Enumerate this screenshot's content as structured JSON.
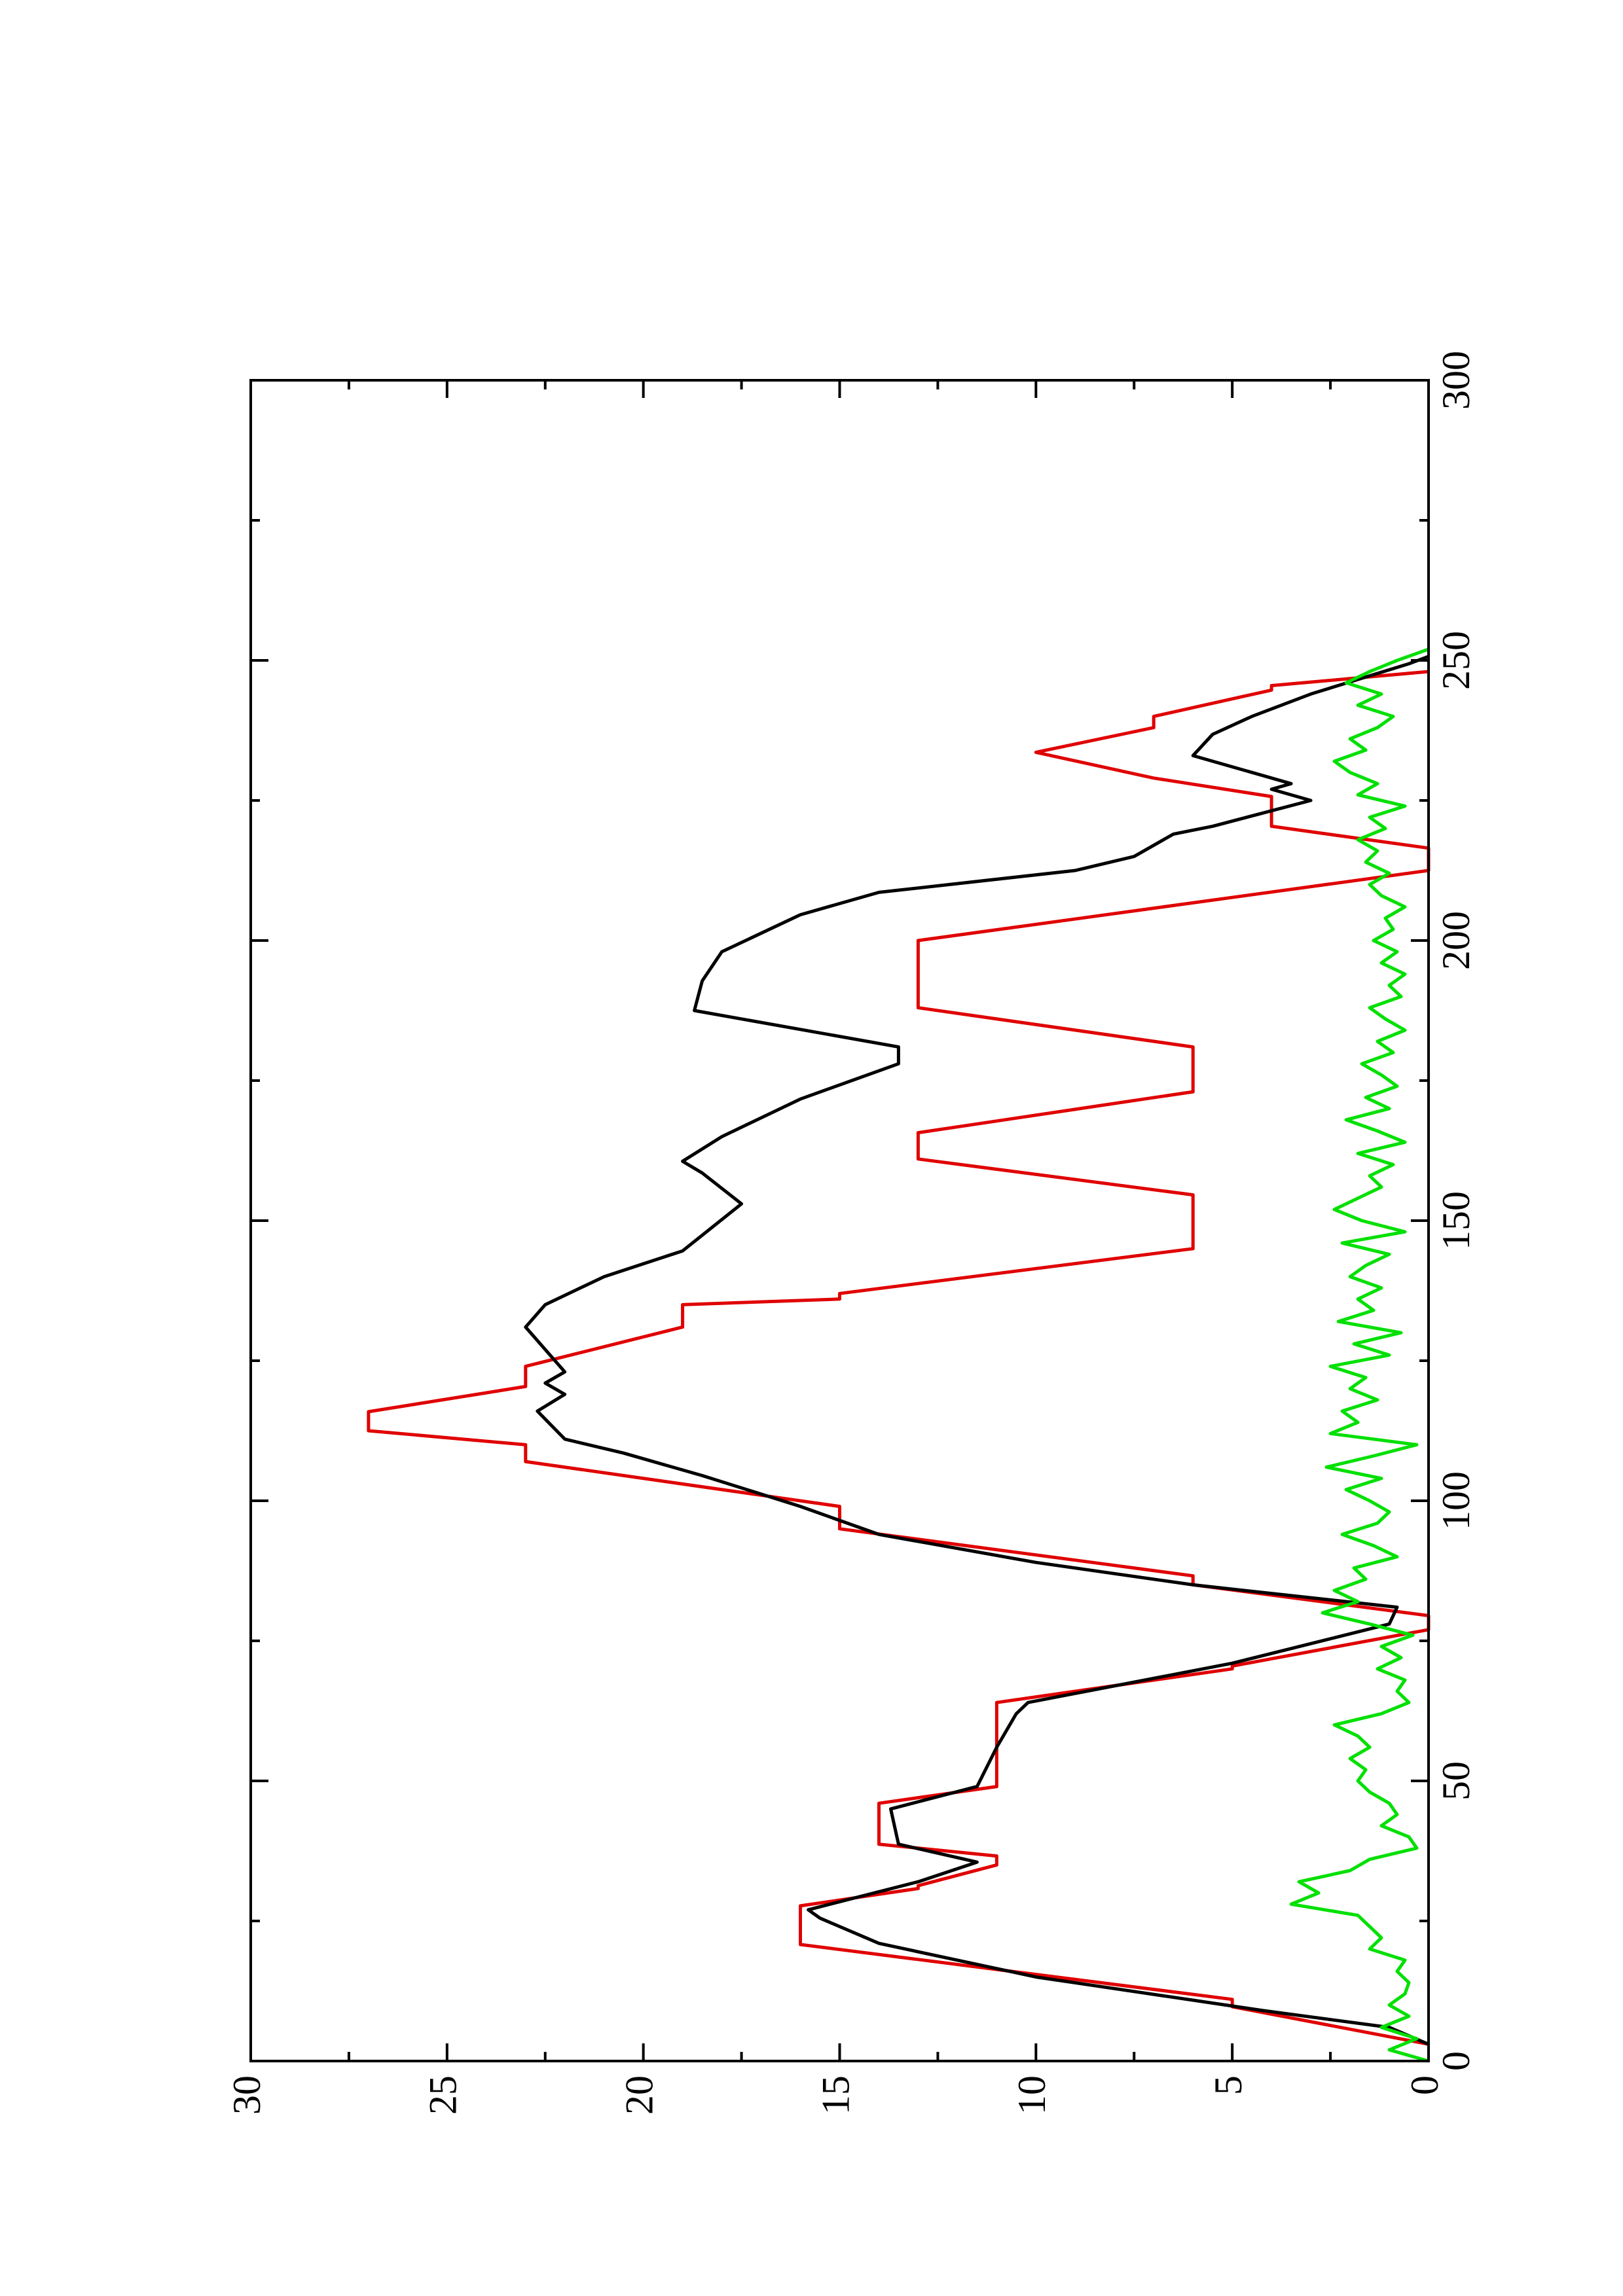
{
  "chart_data": {
    "type": "line",
    "xlim": [
      0,
      300
    ],
    "xticks": [
      0,
      50,
      100,
      150,
      200,
      250,
      300
    ],
    "xminorticks": [
      25,
      75,
      125,
      175,
      225,
      275
    ],
    "ylim": [
      0,
      30
    ],
    "yticks": [
      0,
      5,
      10,
      15,
      20,
      25,
      30
    ],
    "yminorticks": [
      2.5,
      7.5,
      12.5,
      17.5,
      22.5,
      27.5
    ],
    "rotation": -90,
    "series": [
      {
        "color": "#e00000",
        "x": [
          3,
          9.7,
          11,
          20.8,
          27.7,
          30.8,
          31.3,
          35,
          36.6,
          38.7,
          46,
          49,
          64,
          70,
          70.5,
          77,
          79.5,
          85,
          86.6,
          95,
          99,
          107,
          110,
          112.5,
          115.9,
          120.4,
          124,
          131,
          135,
          136,
          137,
          145,
          154.6,
          161,
          165.7,
          173,
          181,
          188,
          200,
          212.5,
          216.5,
          220.4,
          225.7,
          229,
          233.6,
          238,
          240,
          244.7,
          245.5,
          248
        ],
        "values": [
          0,
          5,
          5,
          16,
          16,
          13,
          13,
          11,
          11,
          14,
          14,
          11,
          11,
          5,
          5,
          0,
          0,
          6,
          6,
          15,
          15,
          23,
          23,
          27,
          27,
          23,
          23,
          19,
          19,
          15,
          15,
          6,
          6,
          13,
          13,
          6,
          6,
          13,
          13,
          0,
          0,
          4,
          4,
          7,
          10,
          7,
          7,
          4,
          4,
          0
        ]
      },
      {
        "color": "#000000",
        "x": [
          3,
          6,
          9,
          15,
          21,
          25.5,
          27,
          32,
          35.5,
          38.7,
          45,
          49,
          56,
          62,
          64,
          71,
          78,
          81,
          85,
          89,
          94,
          99,
          104.5,
          108.5,
          111,
          116,
          119,
          121,
          123,
          131,
          135,
          140,
          144.6,
          153,
          158.5,
          160.6,
          165,
          171.7,
          178,
          181,
          187.5,
          192.8,
          198,
          204.6,
          208.6,
          212.5,
          215,
          219,
          220.4,
          225,
          227,
          228,
          233,
          236.8,
          240,
          244,
          249.4,
          250.7
        ],
        "values": [
          0,
          1,
          4.2,
          10,
          14,
          15.5,
          15.8,
          13,
          11.5,
          13.5,
          13.7,
          11.5,
          11,
          10.5,
          10.2,
          5,
          1,
          0.8,
          6,
          10,
          14,
          16,
          18.5,
          20.5,
          22,
          22.7,
          22,
          22.5,
          22,
          23,
          22.5,
          21,
          19,
          17.5,
          18.5,
          19,
          18,
          16,
          13.5,
          13.5,
          18.7,
          18.5,
          18,
          16,
          14,
          9,
          7.5,
          6.5,
          5.5,
          3,
          4,
          3.5,
          6,
          5.5,
          4.5,
          3,
          0.5,
          0
        ]
      },
      {
        "color": "#00e000",
        "x": [
          0,
          2,
          4,
          6,
          8,
          10,
          12,
          14,
          16,
          18,
          20,
          22,
          24,
          26,
          28,
          30,
          32,
          34,
          36,
          38,
          40,
          42,
          44,
          46,
          48,
          50,
          52,
          54,
          56,
          58,
          60,
          62,
          64,
          66,
          68,
          70,
          72,
          74,
          76,
          78,
          80,
          82,
          84,
          86,
          88,
          90,
          92,
          94,
          96,
          98,
          100,
          102,
          104,
          106,
          108,
          110,
          112,
          114,
          116,
          118,
          120,
          122,
          124,
          126,
          128,
          130,
          132,
          134,
          136,
          138,
          140,
          142,
          144,
          146,
          148,
          150,
          152,
          154,
          156,
          158,
          160,
          162,
          164,
          166,
          168,
          170,
          172,
          174,
          176,
          178,
          180,
          182,
          184,
          186,
          188,
          190,
          192,
          194,
          196,
          198,
          200,
          202,
          204,
          206,
          208,
          210,
          212,
          214,
          216,
          218,
          220,
          222,
          224,
          226,
          228,
          230,
          232,
          234,
          236,
          238,
          240,
          242,
          244,
          246,
          248,
          250,
          252
        ],
        "values": [
          0,
          1,
          0.3,
          1.2,
          0.5,
          1,
          0.6,
          0.5,
          0.8,
          0.6,
          1.5,
          1.2,
          1.5,
          1.8,
          3.5,
          2.8,
          3.3,
          2,
          1.5,
          0.3,
          0.5,
          1.2,
          0.8,
          1,
          1.5,
          1.8,
          1.6,
          2,
          1.5,
          1.8,
          2.4,
          1.2,
          0.5,
          0.8,
          0.6,
          1.3,
          0.7,
          1.2,
          0.4,
          1.5,
          2.7,
          1.8,
          2.4,
          1.6,
          1.9,
          0.8,
          1.4,
          2.2,
          1.3,
          1.0,
          1.5,
          2.1,
          1.2,
          2.6,
          1.4,
          0.3,
          2.5,
          1.8,
          2.2,
          1.3,
          2.0,
          1.6,
          2.5,
          1.0,
          1.9,
          0.7,
          2.3,
          1.4,
          1.8,
          1.2,
          2.0,
          1.6,
          1.0,
          2.2,
          0.6,
          1.7,
          2.4,
          1.8,
          1.2,
          1.5,
          0.9,
          1.8,
          0.6,
          1.3,
          2.1,
          1.0,
          1.6,
          0.8,
          1.2,
          1.7,
          0.9,
          1.3,
          0.6,
          1.1,
          1.5,
          0.7,
          1.0,
          0.6,
          1.2,
          0.8,
          1.4,
          0.9,
          1.1,
          0.6,
          1.2,
          1.5,
          1.0,
          1.6,
          1.3,
          1.8,
          1.1,
          1.5,
          0.6,
          1.8,
          1.3,
          2.0,
          2.4,
          1.6,
          2.0,
          1.3,
          0.9,
          1.8,
          1.2,
          2.1,
          1.5,
          0.8,
          0
        ]
      }
    ]
  }
}
